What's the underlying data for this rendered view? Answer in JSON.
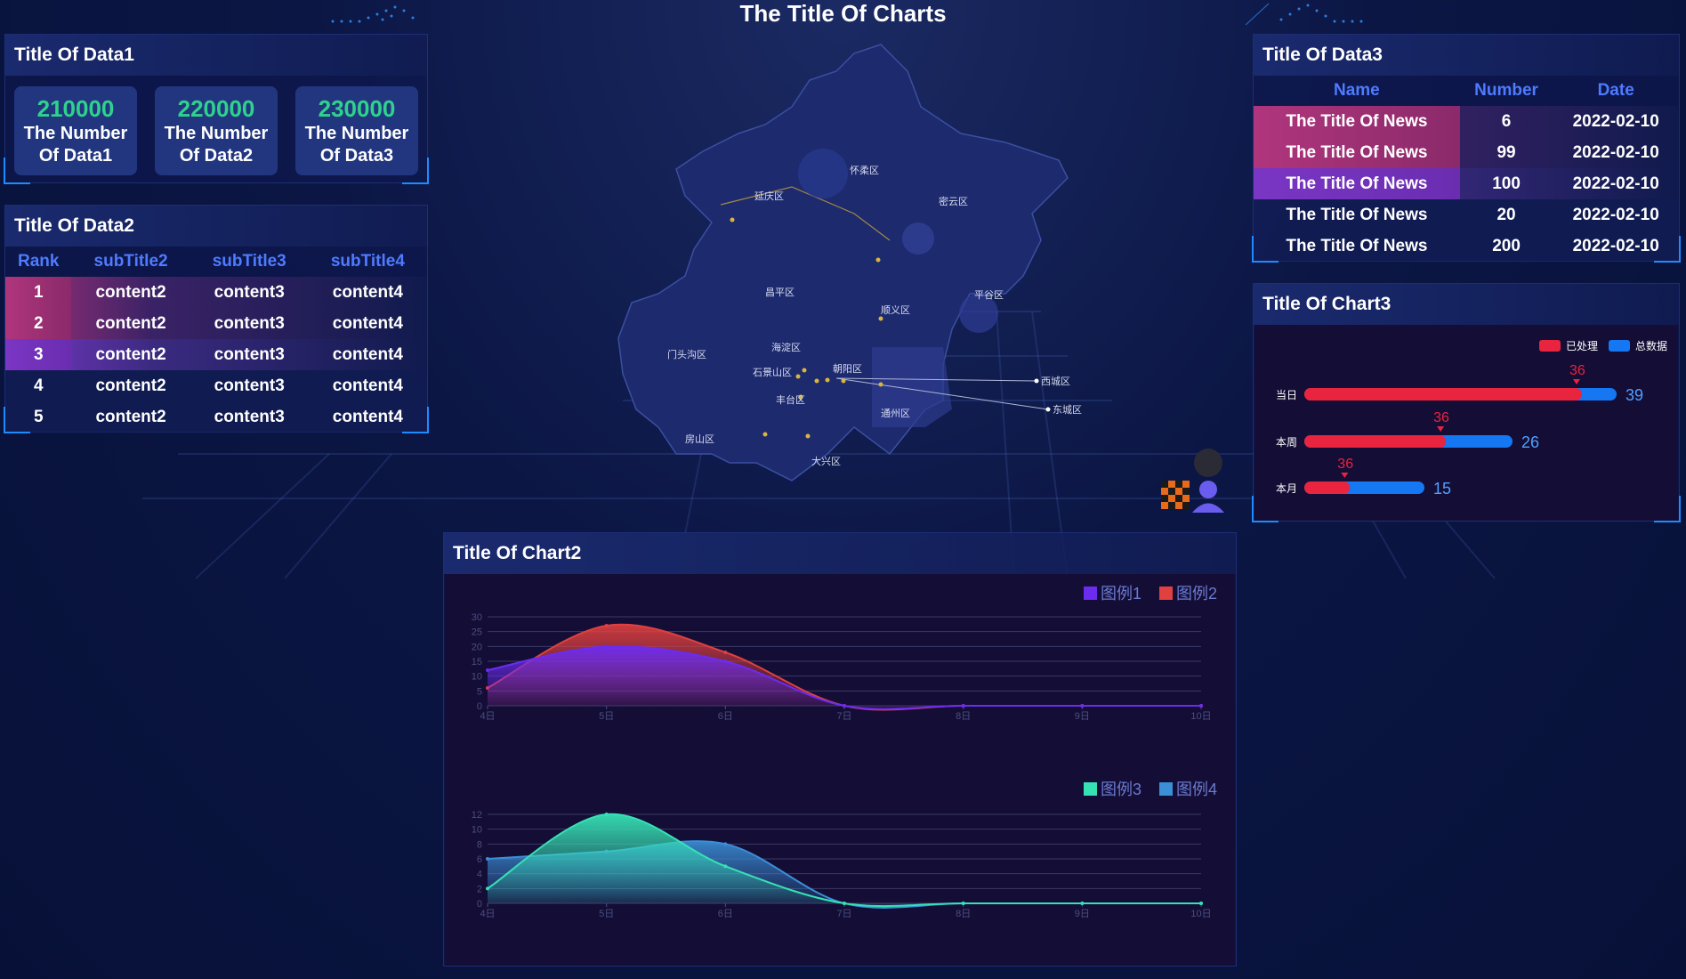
{
  "header": {
    "title": "The Title Of Charts"
  },
  "data1": {
    "title": "Title Of Data1",
    "stats": [
      {
        "value": "210000",
        "label": "The Number Of Data1"
      },
      {
        "value": "220000",
        "label": "The Number Of Data2"
      },
      {
        "value": "230000",
        "label": "The Number Of Data3"
      }
    ]
  },
  "data2": {
    "title": "Title Of Data2",
    "headers": [
      "Rank",
      "subTitle2",
      "subTitle3",
      "subTitle4"
    ],
    "rows": [
      [
        "1",
        "content2",
        "content3",
        "content4"
      ],
      [
        "2",
        "content2",
        "content3",
        "content4"
      ],
      [
        "3",
        "content2",
        "content3",
        "content4"
      ],
      [
        "4",
        "content2",
        "content3",
        "content4"
      ],
      [
        "5",
        "content2",
        "content3",
        "content4"
      ]
    ]
  },
  "data3": {
    "title": "Title Of Data3",
    "headers": [
      "Name",
      "Number",
      "Date"
    ],
    "rows": [
      [
        "The Title Of News",
        "6",
        "2022-02-10"
      ],
      [
        "The Title Of News",
        "99",
        "2022-02-10"
      ],
      [
        "The Title Of News",
        "100",
        "2022-02-10"
      ],
      [
        "The Title Of News",
        "20",
        "2022-02-10"
      ],
      [
        "The Title Of News",
        "200",
        "2022-02-10"
      ]
    ]
  },
  "map": {
    "districts": [
      "怀柔区",
      "延庆区",
      "密云区",
      "昌平区",
      "平谷区",
      "顺义区",
      "门头沟区",
      "海淀区",
      "石景山区",
      "朝阳区",
      "西城区",
      "东城区",
      "丰台区",
      "通州区",
      "房山区",
      "大兴区"
    ]
  },
  "chart3": {
    "title": "Title Of Chart3",
    "legend": [
      "已处理",
      "总数据"
    ],
    "colors": {
      "processed": "#e8243f",
      "total": "#1577f2"
    }
  },
  "chart2": {
    "title": "Title Of Chart2",
    "legend_top": [
      "图例1",
      "图例2"
    ],
    "legend_bottom": [
      "图例3",
      "图例4"
    ]
  },
  "chart_data": [
    {
      "type": "bar",
      "title": "Title Of Chart3",
      "categories": [
        "当日",
        "本周",
        "本月"
      ],
      "series": [
        {
          "name": "已处理",
          "values": [
            36,
            36,
            36
          ]
        },
        {
          "name": "总数据",
          "values": [
            39,
            26,
            15
          ]
        }
      ],
      "orientation": "horizontal",
      "legend": "top-right"
    },
    {
      "type": "area",
      "x": [
        "4日",
        "5日",
        "6日",
        "7日",
        "8日",
        "9日",
        "10日"
      ],
      "series": [
        {
          "name": "图例1",
          "values": [
            12,
            20,
            15,
            0,
            0,
            0,
            0
          ],
          "color": "#6b2cf0"
        },
        {
          "name": "图例2",
          "values": [
            6,
            27,
            18,
            0,
            0,
            0,
            0
          ],
          "color": "#e0403f"
        }
      ],
      "ylim": [
        0,
        30
      ],
      "yticks": [
        0,
        5,
        10,
        15,
        20,
        25,
        30
      ],
      "legend": "top-right"
    },
    {
      "type": "area",
      "x": [
        "4日",
        "5日",
        "6日",
        "7日",
        "8日",
        "9日",
        "10日"
      ],
      "series": [
        {
          "name": "图例3",
          "values": [
            2,
            12,
            5,
            0,
            0,
            0,
            0
          ],
          "color": "#36e2b4"
        },
        {
          "name": "图例4",
          "values": [
            6,
            7,
            8,
            0,
            0,
            0,
            0
          ],
          "color": "#3a8fd6"
        }
      ],
      "ylim": [
        0,
        12
      ],
      "yticks": [
        0,
        2,
        4,
        6,
        8,
        10,
        12
      ],
      "legend": "top-right"
    }
  ]
}
